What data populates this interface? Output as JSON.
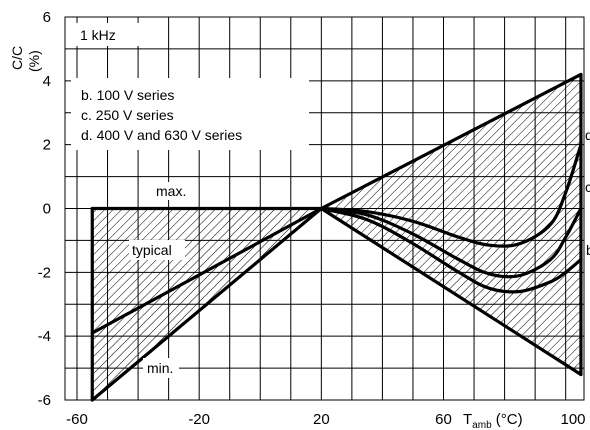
{
  "chart_data": {
    "type": "line",
    "xlabel": "T_amb (°C)",
    "x_tick_labels": [
      "-60",
      "-20",
      "20",
      "60",
      "100"
    ],
    "x_ticks": [
      -60,
      -20,
      20,
      60,
      100
    ],
    "xlim": [
      -60,
      106
    ],
    "ylabel": "C/C (%)",
    "y_tick_labels": [
      "6",
      "4",
      "2",
      "0",
      "-2",
      "-4",
      "-6"
    ],
    "y_ticks": [
      6,
      4,
      2,
      0,
      -2,
      -4,
      -6
    ],
    "ylim": [
      -6,
      6
    ],
    "grid": true,
    "annotations": {
      "frequency": "1 kHz",
      "legend_b": "b. 100 V series",
      "legend_c": "c. 250 V series",
      "legend_d": "d. 400 V and 630 V series",
      "max": "max.",
      "typical": "typical",
      "min": "min."
    },
    "series": [
      {
        "name": "max.",
        "x": [
          -55,
          20,
          105
        ],
        "y": [
          0,
          0,
          4.2
        ]
      },
      {
        "name": "typical",
        "x": [
          -55,
          20
        ],
        "y": [
          -3.9,
          0
        ]
      },
      {
        "name": "min.",
        "x": [
          -55,
          20,
          105
        ],
        "y": [
          -6,
          0,
          -5.2
        ]
      },
      {
        "name": "b",
        "x": [
          20,
          35,
          50,
          65,
          75,
          85,
          95,
          100,
          105
        ],
        "y": [
          0,
          -0.1,
          -0.4,
          -0.9,
          -1.15,
          -1.1,
          -0.5,
          0.5,
          2.0
        ]
      },
      {
        "name": "c",
        "x": [
          20,
          35,
          50,
          65,
          75,
          85,
          95,
          100,
          105
        ],
        "y": [
          0,
          -0.2,
          -0.8,
          -1.6,
          -2.05,
          -2.1,
          -1.6,
          -0.9,
          0
        ]
      },
      {
        "name": "d",
        "x": [
          20,
          35,
          50,
          65,
          75,
          85,
          95,
          100,
          105
        ],
        "y": [
          0,
          -0.35,
          -1.1,
          -2.0,
          -2.5,
          -2.6,
          -2.3,
          -2.0,
          -1.6
        ]
      }
    ]
  }
}
